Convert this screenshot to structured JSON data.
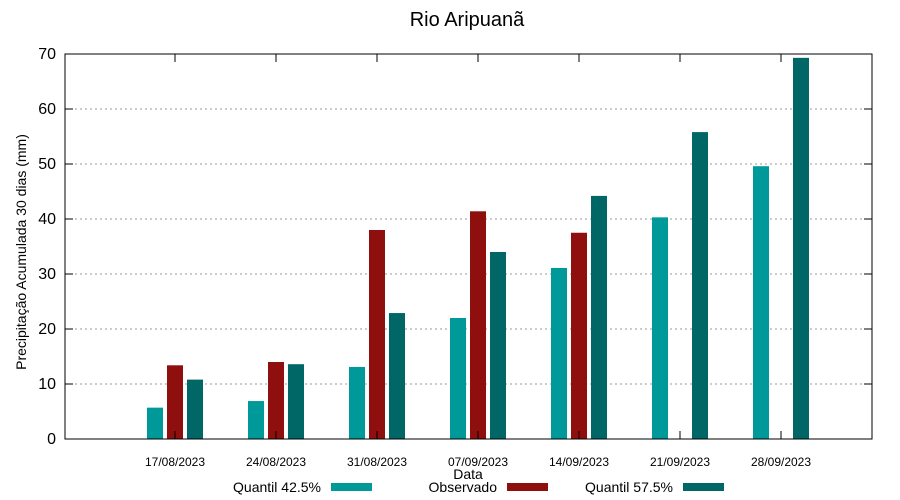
{
  "chart_data": {
    "type": "bar",
    "title": "Rio Aripuanã",
    "xlabel": "Data",
    "ylabel": "Precipitação Acumulada 30 dias (mm)",
    "ylim": [
      0,
      70
    ],
    "yticks": [
      0,
      10,
      20,
      30,
      40,
      50,
      60,
      70
    ],
    "grid": true,
    "legend_position": "bottom",
    "categories": [
      "17/08/2023",
      "24/08/2023",
      "31/08/2023",
      "07/09/2023",
      "14/09/2023",
      "21/09/2023",
      "28/09/2023"
    ],
    "series": [
      {
        "name": "Quantil 42.5%",
        "color": "#009999",
        "values": [
          5.7,
          6.9,
          13.1,
          22.0,
          31.1,
          40.3,
          49.6
        ]
      },
      {
        "name": "Observado",
        "color": "#8f0f0f",
        "values": [
          13.4,
          14.0,
          38.0,
          41.4,
          37.5,
          null,
          null
        ]
      },
      {
        "name": "Quantil 57.5%",
        "color": "#006666",
        "values": [
          10.8,
          13.6,
          22.9,
          34.0,
          44.2,
          55.8,
          69.3
        ]
      }
    ]
  }
}
